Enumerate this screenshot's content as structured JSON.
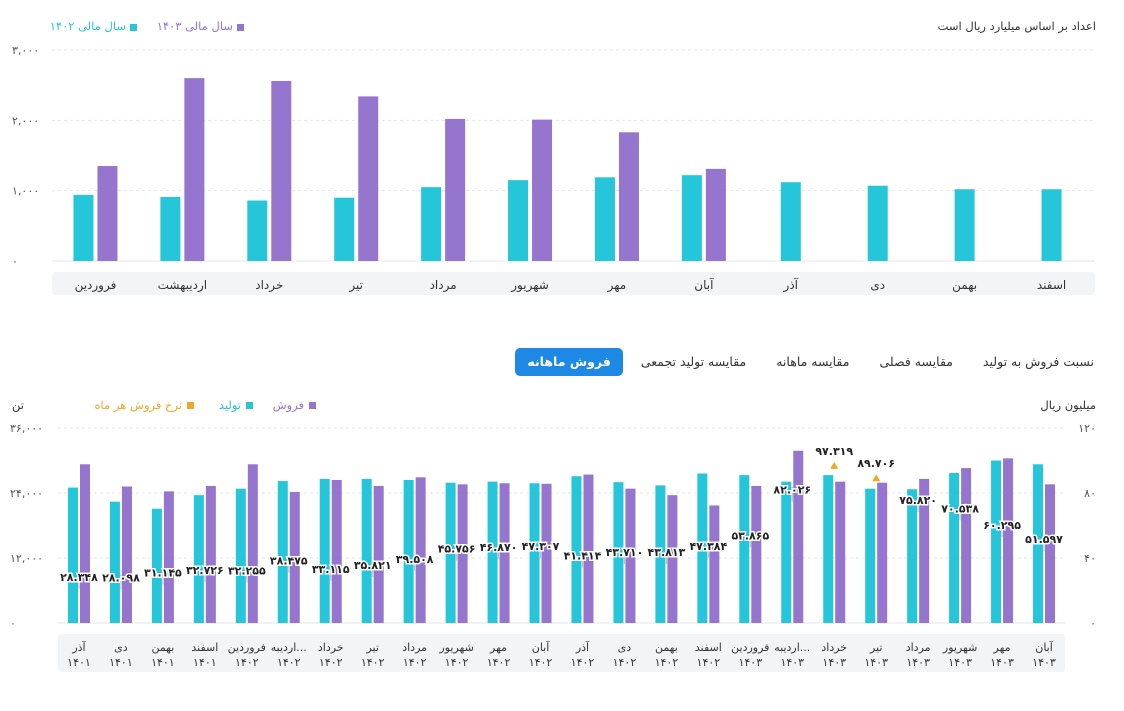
{
  "top_chart": {
    "note": "اعداد بر اساس میلیارد ریال است",
    "legend": [
      {
        "label": "سال مالی ۱۴۰۳",
        "color": "#9575cd"
      },
      {
        "label": "سال مالی ۱۴۰۲",
        "color": "#26c6da"
      }
    ],
    "y_ticks": [
      "۳,۰۰۰",
      "۲,۰۰۰",
      "۱,۰۰۰",
      "۰"
    ]
  },
  "tabs": [
    {
      "label": "فروش ماهانه",
      "active": true
    },
    {
      "label": "مقایسه تولید تجمعی",
      "active": false
    },
    {
      "label": "مقایسه ماهانه",
      "active": false
    },
    {
      "label": "مقایسه فصلی",
      "active": false
    },
    {
      "label": "نسبت فروش به تولید",
      "active": false
    }
  ],
  "bottom_chart": {
    "left_unit": "تن",
    "right_unit": "میلیون ریال",
    "legend": [
      {
        "label": "فروش",
        "color": "#9575cd"
      },
      {
        "label": "تولید",
        "color": "#26c6da"
      },
      {
        "label": "نرخ فروش هر ماه",
        "color": "#f5a623"
      }
    ],
    "left_ticks": [
      "۳۶,۰۰۰",
      "۲۴,۰۰۰",
      "۱۲,۰۰۰",
      "۰"
    ],
    "right_ticks": [
      "۱۲۰",
      "۸۰",
      "۴۰",
      "۰"
    ]
  },
  "chart_data": [
    {
      "type": "bar",
      "title": "",
      "xlabel": "",
      "ylabel": "",
      "ylim": [
        0,
        3000
      ],
      "categories": [
        "فروردین",
        "اردیبهشت",
        "خرداد",
        "تیر",
        "مرداد",
        "شهریور",
        "مهر",
        "آبان",
        "آذر",
        "دی",
        "بهمن",
        "اسفند"
      ],
      "series": [
        {
          "name": "سال مالی ۱۴۰۲",
          "color": "#26c6da",
          "values": [
            940,
            910,
            860,
            900,
            1050,
            1150,
            1190,
            1220,
            1120,
            1070,
            1020,
            1020
          ]
        },
        {
          "name": "سال مالی ۱۴۰۳",
          "color": "#9575cd",
          "values": [
            1350,
            2600,
            2560,
            2340,
            2020,
            2010,
            1830,
            1310,
            null,
            null,
            null,
            null
          ]
        }
      ],
      "grid": true,
      "legend_position": "top-left"
    },
    {
      "type": "bar",
      "title": "",
      "ylim_left": [
        0,
        36000
      ],
      "ylim_right": [
        0,
        120
      ],
      "categories": [
        [
          "آذر",
          "۱۴۰۱"
        ],
        [
          "دی",
          "۱۴۰۱"
        ],
        [
          "بهمن",
          "۱۴۰۱"
        ],
        [
          "اسفند",
          "۱۴۰۱"
        ],
        [
          "فروردین",
          "۱۴۰۲"
        ],
        [
          "اردیبه...",
          "۱۴۰۲"
        ],
        [
          "خرداد",
          "۱۴۰۲"
        ],
        [
          "تیر",
          "۱۴۰۲"
        ],
        [
          "مرداد",
          "۱۴۰۲"
        ],
        [
          "شهریور",
          "۱۴۰۲"
        ],
        [
          "مهر",
          "۱۴۰۲"
        ],
        [
          "آبان",
          "۱۴۰۲"
        ],
        [
          "آذر",
          "۱۴۰۲"
        ],
        [
          "دی",
          "۱۴۰۲"
        ],
        [
          "بهمن",
          "۱۴۰۲"
        ],
        [
          "اسفند",
          "۱۴۰۲"
        ],
        [
          "فروردین",
          "۱۴۰۳"
        ],
        [
          "اردیبه...",
          "۱۴۰۳"
        ],
        [
          "خرداد",
          "۱۴۰۳"
        ],
        [
          "تیر",
          "۱۴۰۳"
        ],
        [
          "مرداد",
          "۱۴۰۳"
        ],
        [
          "شهریور",
          "۱۴۰۳"
        ],
        [
          "مهر",
          "۱۴۰۳"
        ],
        [
          "آبان",
          "۱۴۰۳"
        ]
      ],
      "series": [
        {
          "name": "تولید",
          "color": "#26c6da",
          "axis": "left",
          "values": [
            25000,
            22400,
            21100,
            23600,
            24800,
            26200,
            26600,
            26600,
            26400,
            25900,
            26100,
            25800,
            27100,
            26000,
            25400,
            27600,
            27300,
            26100,
            27300,
            24800,
            24700,
            27700,
            30000,
            29300
          ]
        },
        {
          "name": "فروش",
          "color": "#9575cd",
          "axis": "left",
          "values": [
            29300,
            25200,
            24300,
            25300,
            29300,
            24200,
            26400,
            25300,
            26900,
            25600,
            25800,
            25700,
            27400,
            24800,
            23600,
            21700,
            25300,
            31800,
            26100,
            25900,
            26600,
            28600,
            30400,
            25600
          ]
        },
        {
          "name": "نرخ فروش هر ماه",
          "color": "#f5a623",
          "axis": "right",
          "values": [
            28.348,
            28.098,
            31.145,
            32.726,
            32.255,
            38.475,
            33.115,
            35.821,
            39.508,
            45.756,
            46.87,
            47.307,
            41.414,
            43.71,
            43.813,
            47.384,
            53.865,
            82.026,
            97.319,
            89.706,
            75.82,
            70.538,
            60.295,
            51.597
          ],
          "labels": [
            "۲۸.۳۴۸",
            "۲۸.۰۹۸",
            "۳۱.۱۴۵",
            "۳۲.۷۲۶",
            "۳۲.۲۵۵",
            "۳۸.۴۷۵",
            "۳۳.۱۱۵",
            "۳۵.۸۲۱",
            "۳۹.۵۰۸",
            "۴۵.۷۵۶",
            "۴۶.۸۷۰",
            "۴۷.۳۰۷",
            "۴۱.۴۱۴",
            "۴۳.۷۱۰",
            "۴۳.۸۱۳",
            "۴۷.۳۸۴",
            "۵۳.۸۶۵",
            "۸۲.۰۲۶",
            "۹۷.۳۱۹",
            "۸۹.۷۰۶",
            "۷۵.۸۲۰",
            "۷۰.۵۳۸",
            "۶۰.۲۹۵",
            "۵۱.۵۹۷"
          ]
        }
      ],
      "grid": true,
      "legend_position": "top-left"
    }
  ]
}
